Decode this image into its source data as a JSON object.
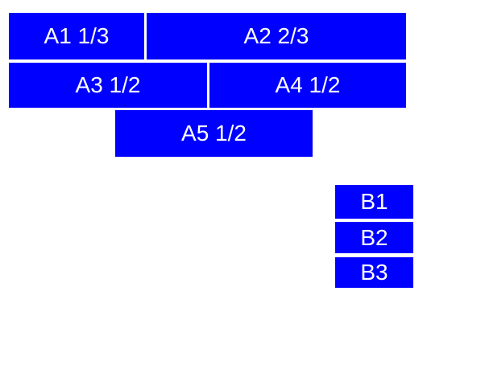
{
  "colors": {
    "page_background": "#ffffff",
    "cell_fill": "#0000ff",
    "cell_text": "#ffffff"
  },
  "cells": {
    "a1": "A1 1/3",
    "a2": "A2 2/3",
    "a3": "A3 1/2",
    "a4": "A4 1/2",
    "a5": "A5 1/2",
    "b1": "B1",
    "b2": "B2",
    "b3": "B3"
  }
}
